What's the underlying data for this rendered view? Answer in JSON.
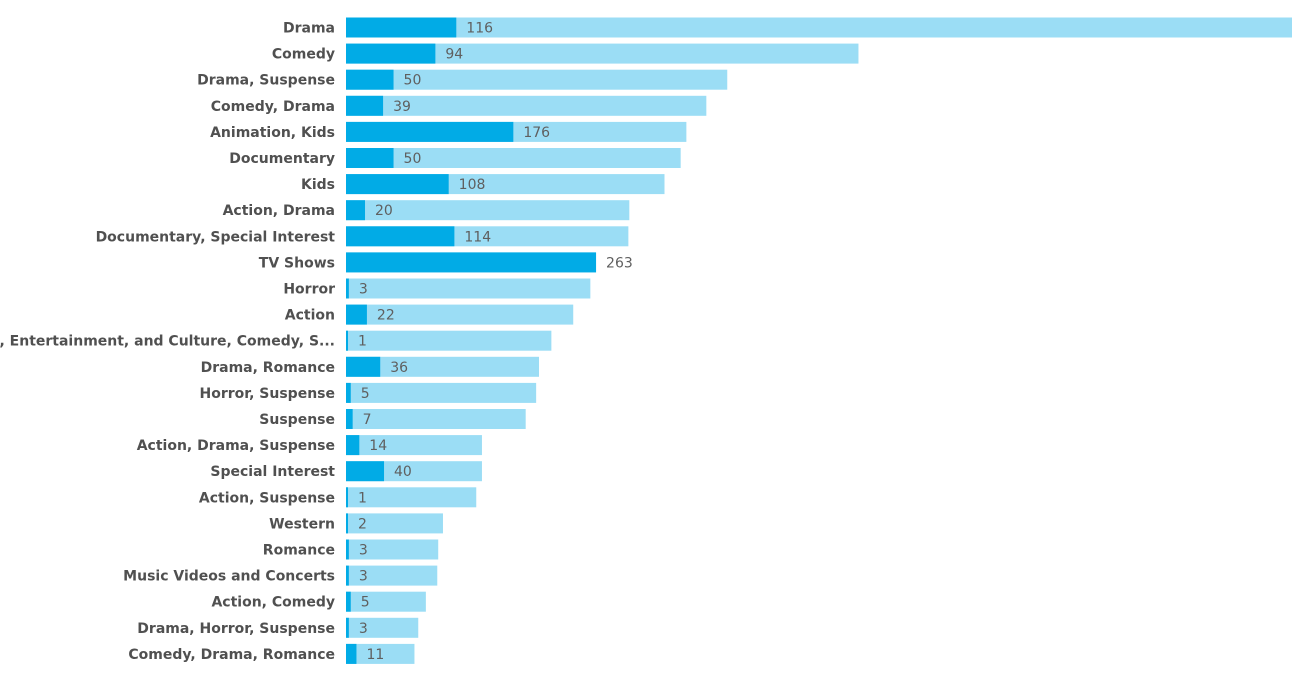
{
  "chart_data": {
    "type": "bar",
    "orientation": "horizontal",
    "categories": [
      "Drama",
      "Comedy",
      "Drama, Suspense",
      "Comedy, Drama",
      "Animation, Kids",
      "Documentary",
      "Kids",
      "Action, Drama",
      "Documentary, Special Interest",
      "TV Shows",
      "Horror",
      "Action",
      "Arts, Entertainment, and Culture, Comedy, S...",
      "Drama, Romance",
      "Horror, Suspense",
      "Suspense",
      "Action, Drama, Suspense",
      "Special Interest",
      "Action, Suspense",
      "Western",
      "Romance",
      "Music Videos and Concerts",
      "Action, Comedy",
      "Drama, Horror, Suspense",
      "Comedy, Drama, Romance"
    ],
    "series": [
      {
        "values": [
          116,
          94,
          50,
          39,
          176,
          50,
          108,
          20,
          114,
          263,
          3,
          22,
          1,
          36,
          5,
          7,
          14,
          40,
          1,
          2,
          3,
          3,
          5,
          3,
          11
        ],
        "color": "#01abe6",
        "labeled": true
      },
      {
        "values": [
          995,
          539,
          401,
          379,
          358,
          352,
          335,
          298,
          297,
          263,
          257,
          239,
          216,
          203,
          200,
          189,
          143,
          143,
          137,
          102,
          97,
          96,
          84,
          76,
          72
        ],
        "color": "#9bddf5",
        "labeled": false
      }
    ],
    "xlim": [
      0,
      995
    ],
    "grid": false,
    "legend": "none",
    "colors": {
      "primary": "#01abe6",
      "background_bar": "#9bddf5",
      "category_text": "#505050",
      "value_text": "#5f5f5f"
    }
  }
}
